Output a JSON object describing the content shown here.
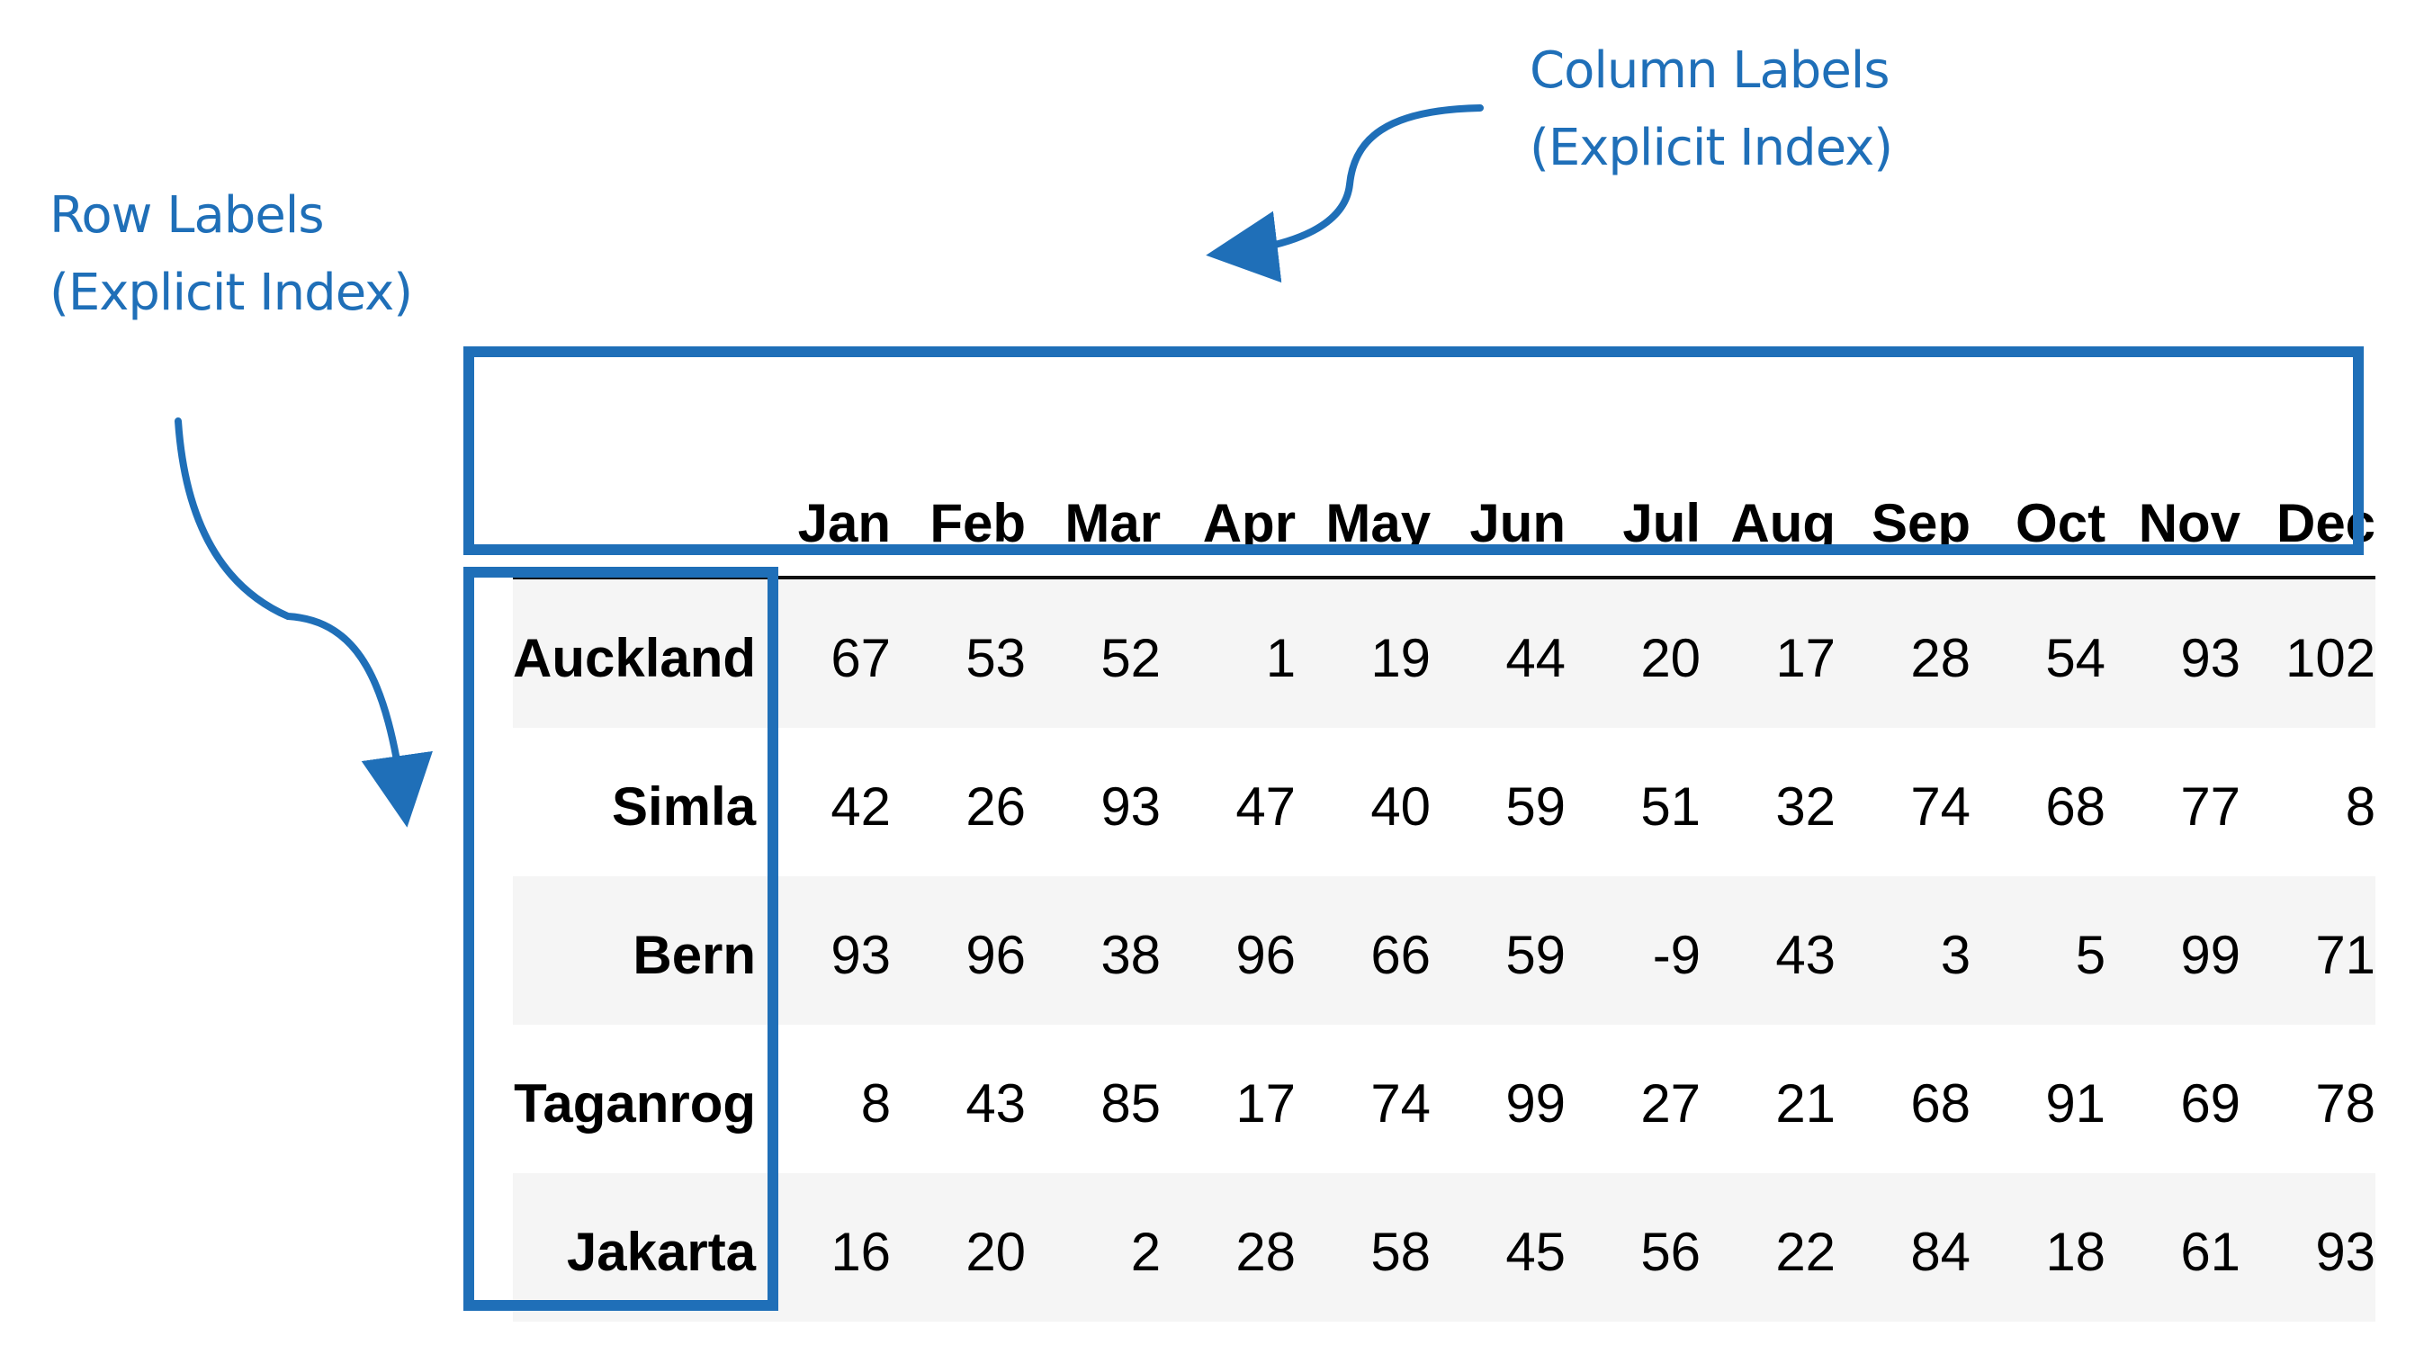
{
  "callouts": {
    "column_labels": {
      "line1": "Column Labels",
      "line2": "(Explicit Index)"
    },
    "row_labels": {
      "line1": "Row Labels",
      "line2": "(Explicit Index)"
    }
  },
  "colors": {
    "accent": "#1f6fb8",
    "stripe": "#f5f5f5"
  },
  "table": {
    "columns": [
      "Jan",
      "Feb",
      "Mar",
      "Apr",
      "May",
      "Jun",
      "Jul",
      "Aug",
      "Sep",
      "Oct",
      "Nov",
      "Dec"
    ],
    "rows": [
      {
        "label": "Auckland",
        "values": [
          "67",
          "53",
          "52",
          "1",
          "19",
          "44",
          "20",
          "17",
          "28",
          "54",
          "93",
          "102"
        ]
      },
      {
        "label": "Simla",
        "values": [
          "42",
          "26",
          "93",
          "47",
          "40",
          "59",
          "51",
          "32",
          "74",
          "68",
          "77",
          "8"
        ]
      },
      {
        "label": "Bern",
        "values": [
          "93",
          "96",
          "38",
          "96",
          "66",
          "59",
          "-9",
          "43",
          "3",
          "5",
          "99",
          "71"
        ]
      },
      {
        "label": "Taganrog",
        "values": [
          "8",
          "43",
          "85",
          "17",
          "74",
          "99",
          "27",
          "21",
          "68",
          "91",
          "69",
          "78"
        ]
      },
      {
        "label": "Jakarta",
        "values": [
          "16",
          "20",
          "2",
          "28",
          "58",
          "45",
          "56",
          "22",
          "84",
          "18",
          "61",
          "93"
        ]
      }
    ]
  }
}
